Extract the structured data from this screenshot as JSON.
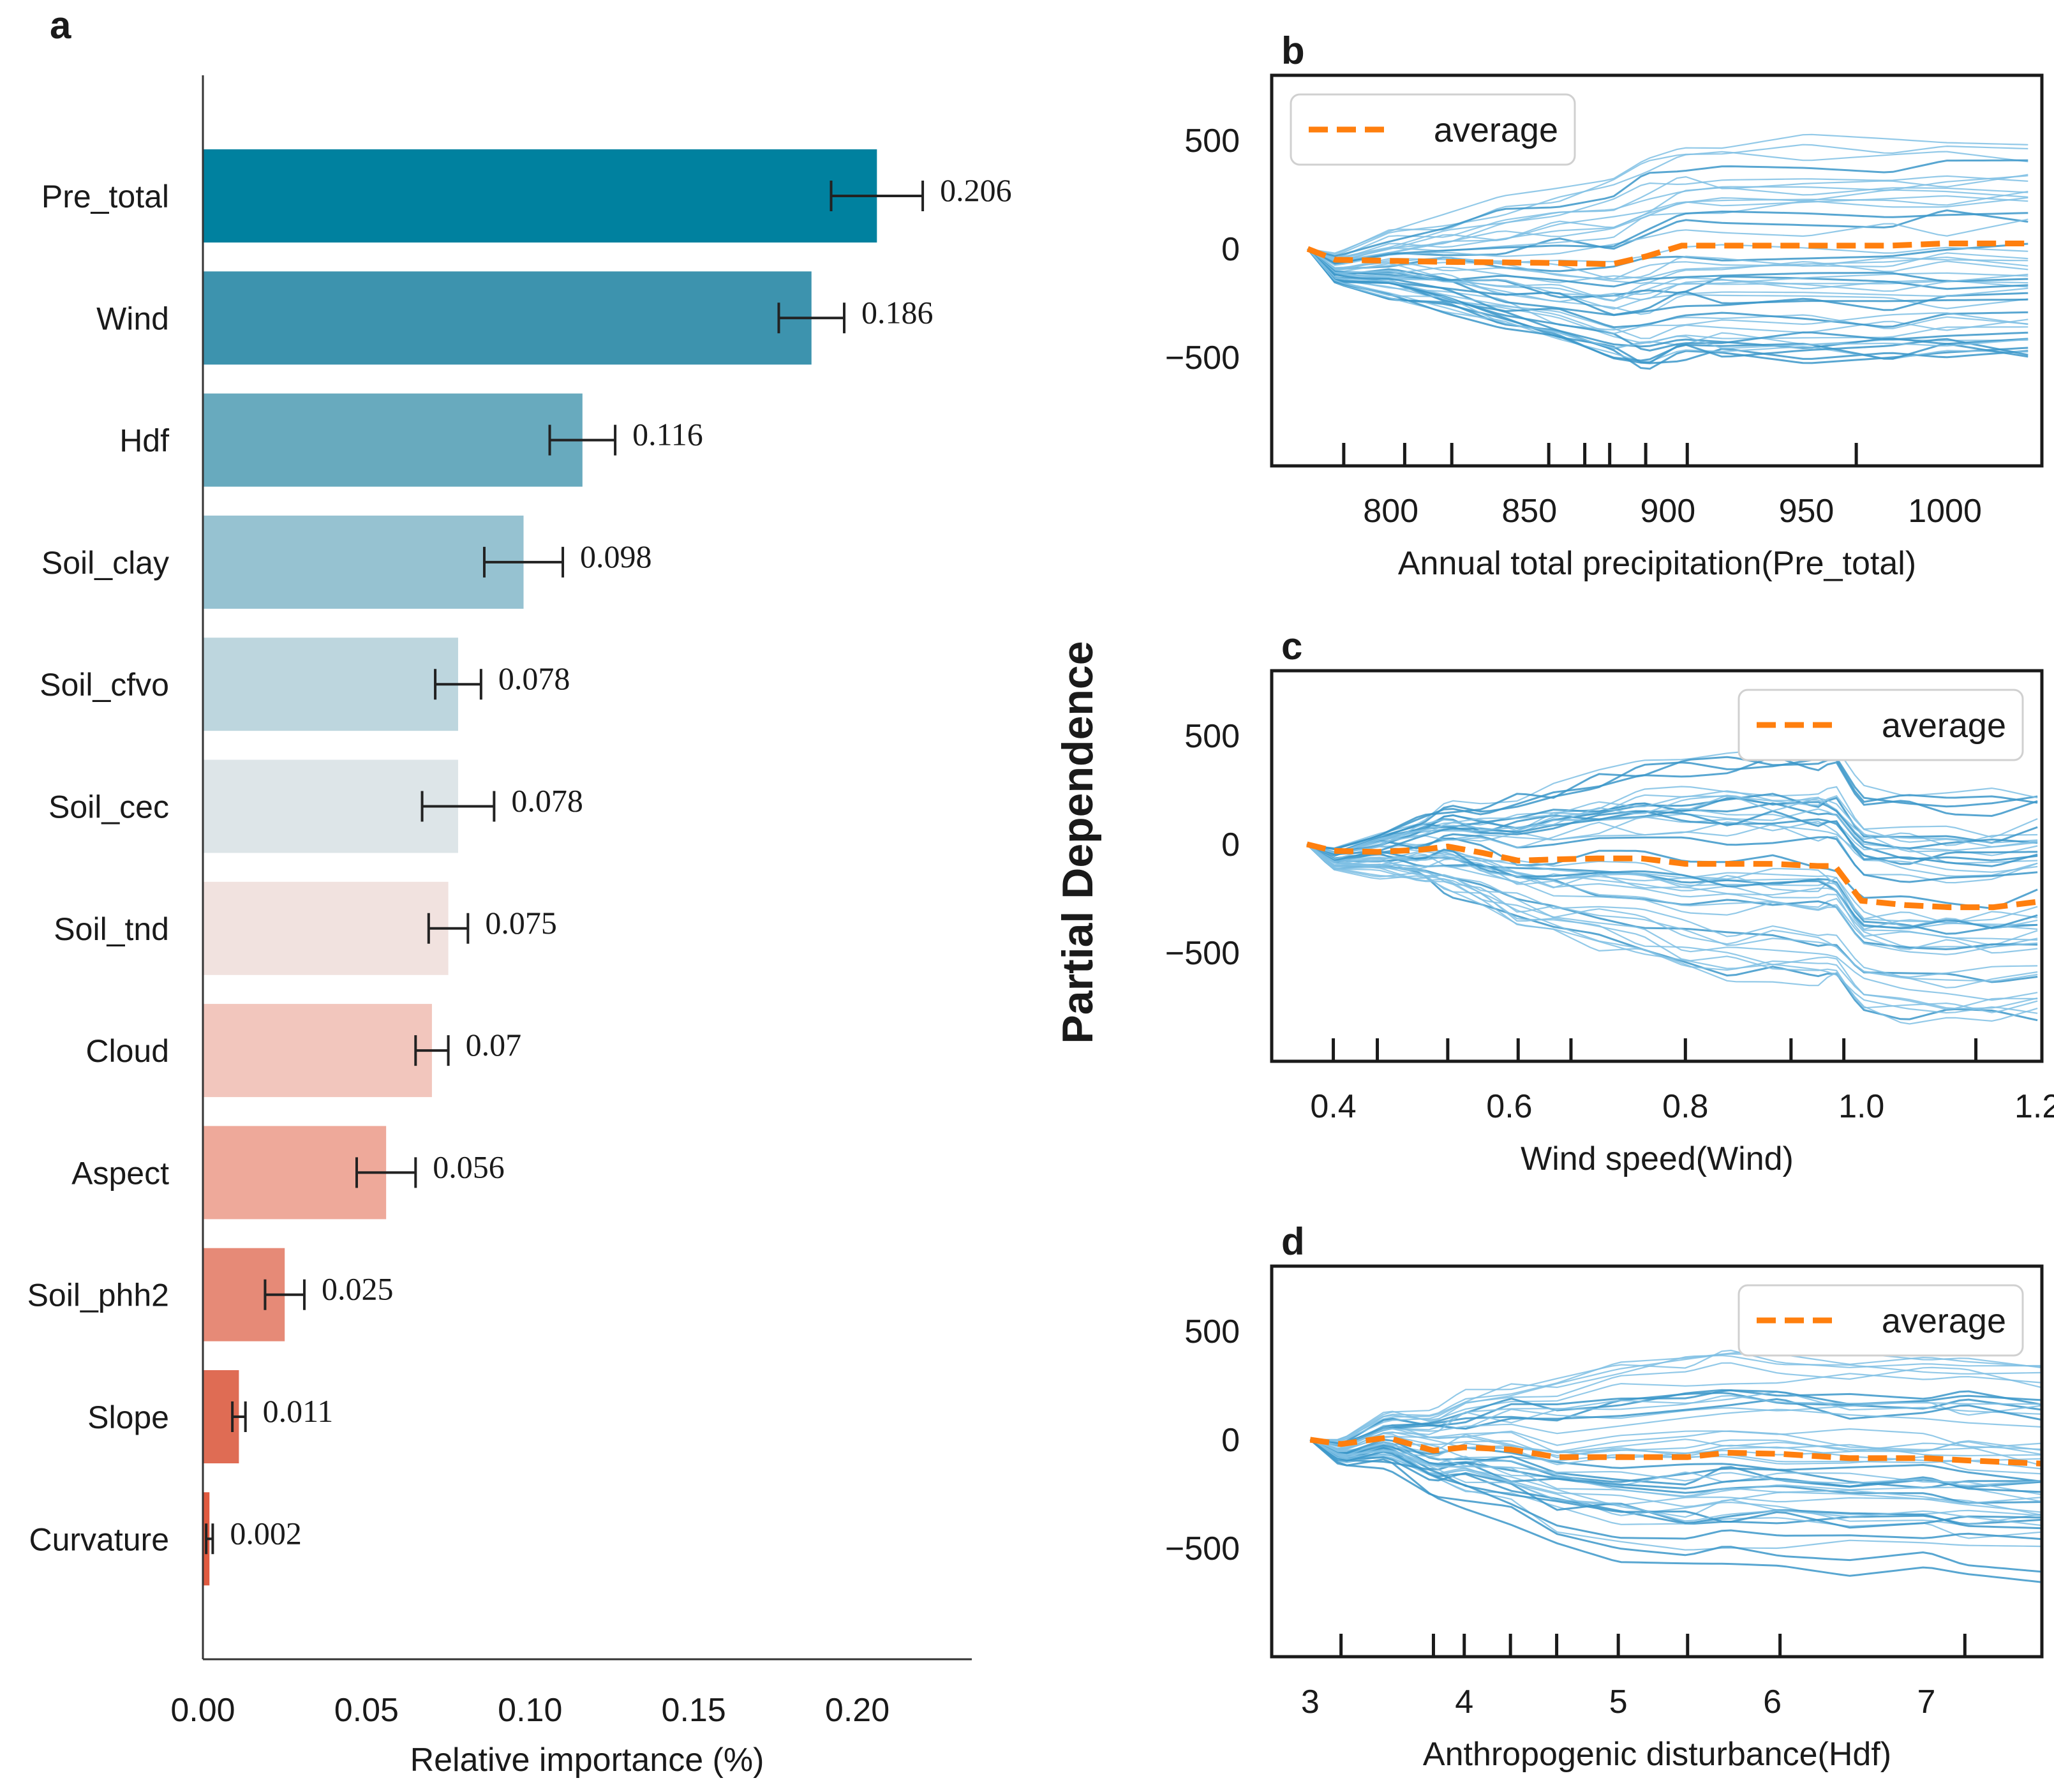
{
  "figure": {
    "shared_ylabel": "Partial Dependence"
  },
  "chart_data": [
    {
      "id": "a",
      "panel_letter": "a",
      "type": "bar",
      "orientation": "horizontal",
      "xlabel": "Relative importance (%)",
      "ylabel": "",
      "xlim": [
        0,
        0.235
      ],
      "xticks": [
        0.0,
        0.05,
        0.1,
        0.15,
        0.2
      ],
      "xtick_labels": [
        "0.00",
        "0.05",
        "0.10",
        "0.15",
        "0.20"
      ],
      "categories": [
        "Pre_total",
        "Wind",
        "Hdf",
        "Soil_clay",
        "Soil_cfvo",
        "Soil_cec",
        "Soil_tnd",
        "Cloud",
        "Aspect",
        "Soil_phh2",
        "Slope",
        "Curvature"
      ],
      "values": [
        0.206,
        0.186,
        0.116,
        0.098,
        0.078,
        0.078,
        0.075,
        0.07,
        0.056,
        0.025,
        0.011,
        0.002
      ],
      "value_labels": [
        "0.206",
        "0.186",
        "0.116",
        "0.098",
        "0.078",
        "0.078",
        "0.075",
        "0.07",
        "0.056",
        "0.025",
        "0.011",
        "0.002"
      ],
      "errors": [
        0.014,
        0.01,
        0.01,
        0.012,
        0.007,
        0.011,
        0.006,
        0.005,
        0.009,
        0.006,
        0.002,
        0.001
      ],
      "colors": [
        "#00819f",
        "#3d93ae",
        "#68aabe",
        "#96c2d1",
        "#bdd6de",
        "#dde5e8",
        "#f1e2df",
        "#f2c6bd",
        "#eea99a",
        "#e68a77",
        "#df6c54",
        "#e05a40"
      ]
    },
    {
      "id": "b",
      "panel_letter": "b",
      "type": "line",
      "xlabel": "Annual total precipitation(Pre_total)",
      "ylabel": "Partial Dependence",
      "xlim": [
        757,
        1035
      ],
      "ylim": [
        -1000,
        800
      ],
      "xticks": [
        800,
        850,
        900,
        950,
        1000
      ],
      "yticks": [
        500,
        0,
        -500
      ],
      "ytick_labels": [
        "500",
        "0",
        "−500"
      ],
      "rug": [
        783,
        805,
        822,
        857,
        870,
        879,
        892,
        907,
        968
      ],
      "legend": {
        "label": "average",
        "position": "upper left"
      },
      "average": {
        "x": [
          770,
          780,
          800,
          820,
          840,
          860,
          880,
          892,
          905,
          920,
          950,
          980,
          1000,
          1030
        ],
        "y": [
          0,
          -50,
          -55,
          -60,
          -62,
          -65,
          -70,
          -35,
          15,
          15,
          15,
          15,
          25,
          25
        ]
      },
      "ice_count": 45
    },
    {
      "id": "c",
      "panel_letter": "c",
      "type": "line",
      "xlabel": "Wind speed(Wind)",
      "ylabel": "Partial Dependence",
      "xlim": [
        0.33,
        1.205
      ],
      "ylim": [
        -1000,
        800
      ],
      "xticks": [
        0.4,
        0.6,
        0.8,
        1.0,
        1.2
      ],
      "xtick_labels": [
        "0.4",
        "0.6",
        "0.8",
        "1.0",
        "1.2"
      ],
      "yticks": [
        500,
        0,
        -500
      ],
      "ytick_labels": [
        "500",
        "0",
        "−500"
      ],
      "rug": [
        0.4,
        0.45,
        0.53,
        0.61,
        0.67,
        0.8,
        0.92,
        0.98,
        1.13
      ],
      "legend": {
        "label": "average",
        "position": "upper right"
      },
      "average": {
        "x": [
          0.37,
          0.4,
          0.45,
          0.5,
          0.53,
          0.57,
          0.61,
          0.65,
          0.7,
          0.75,
          0.8,
          0.85,
          0.9,
          0.95,
          0.97,
          1.0,
          1.05,
          1.1,
          1.15,
          1.2
        ],
        "y": [
          0,
          -30,
          -35,
          -25,
          -10,
          -40,
          -75,
          -70,
          -65,
          -65,
          -90,
          -90,
          -90,
          -100,
          -100,
          -260,
          -280,
          -290,
          -290,
          -265
        ]
      },
      "ice_count": 45
    },
    {
      "id": "d",
      "panel_letter": "d",
      "type": "line",
      "xlabel": "Anthropogenic disturbance(Hdf)",
      "ylabel": "Partial Dependence",
      "xlim": [
        2.75,
        7.75
      ],
      "ylim": [
        -1000,
        800
      ],
      "xticks": [
        3,
        4,
        5,
        6,
        7
      ],
      "xtick_labels": [
        "3",
        "4",
        "5",
        "6",
        "7"
      ],
      "yticks": [
        500,
        0,
        -500
      ],
      "ytick_labels": [
        "500",
        "0",
        "−500"
      ],
      "rug": [
        3.2,
        3.8,
        4.0,
        4.3,
        4.6,
        5.0,
        5.45,
        6.05,
        7.25
      ],
      "legend": {
        "label": "average",
        "position": "upper right"
      },
      "average": {
        "x": [
          3.0,
          3.2,
          3.5,
          3.8,
          4.0,
          4.3,
          4.6,
          5.0,
          5.45,
          5.7,
          6.05,
          6.5,
          7.0,
          7.25,
          7.75
        ],
        "y": [
          0,
          -20,
          10,
          -50,
          -35,
          -45,
          -80,
          -80,
          -80,
          -60,
          -65,
          -85,
          -85,
          -95,
          -110
        ]
      },
      "ice_count": 45
    }
  ]
}
